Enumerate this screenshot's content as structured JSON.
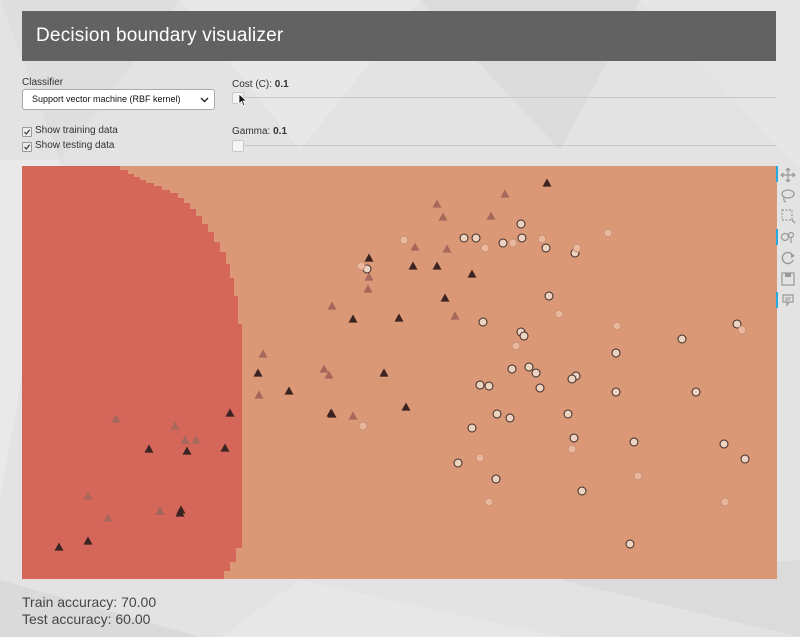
{
  "header": {
    "title": "Decision boundary visualizer"
  },
  "controls": {
    "classifier_label": "Classifier",
    "classifier_value": "Support vector machine (RBF kernel)",
    "show_training_label": "Show training data",
    "show_testing_label": "Show testing data",
    "show_training_checked": true,
    "show_testing_checked": true,
    "cost_label": "Cost (C):",
    "cost_value": "0.1",
    "gamma_label": "Gamma:",
    "gamma_value": "0.1"
  },
  "toolbar": {
    "tools": [
      "pan-icon",
      "lasso-select-icon",
      "box-select-icon",
      "hover-inspect-icon",
      "reset-icon",
      "save-icon",
      "hover-tooltip-icon"
    ]
  },
  "colors": {
    "region_red": "#d4675a",
    "region_orange": "#da9876",
    "triangle_train": "#3a2321",
    "triangle_test": "#a5685b",
    "circle_train_fill": "#ecd2bf",
    "circle_test_fill": "#e9b79b",
    "accent": "#26aae1"
  },
  "accuracy": {
    "train_label": "Train accuracy: 70.00",
    "test_label": "Test accuracy: 60.00"
  },
  "chart_data": {
    "type": "scatter",
    "title": "",
    "xlabel": "",
    "ylabel": "",
    "xlim": [
      0,
      755
    ],
    "ylim": [
      0,
      413
    ],
    "background_regions": [
      "red (left, triangle class)",
      "orange (right, circle class)"
    ],
    "series": [
      {
        "marker": "triangle",
        "split": "train",
        "x": [
          525,
          347,
          391,
          415,
          450,
          423,
          331,
          377,
          236,
          267,
          362,
          310,
          384,
          309,
          208,
          203,
          127,
          165,
          158,
          138,
          66,
          37,
          159
        ],
        "y": [
          17,
          92,
          100,
          100,
          108,
          132,
          153,
          152,
          207,
          225,
          207,
          248,
          241,
          247,
          247,
          282,
          283,
          285,
          347,
          345,
          375,
          381,
          344
        ]
      },
      {
        "marker": "triangle",
        "split": "test",
        "x": [
          483,
          415,
          421,
          469,
          425,
          393,
          347,
          433,
          346,
          310,
          241,
          237,
          302,
          307,
          331,
          94,
          153,
          163,
          174,
          66,
          86,
          138
        ],
        "y": [
          28,
          38,
          51,
          50,
          83,
          81,
          111,
          150,
          123,
          140,
          188,
          229,
          203,
          209,
          250,
          253,
          260,
          274,
          274,
          330,
          352,
          345
        ]
      },
      {
        "marker": "circle",
        "split": "train",
        "x": [
          442,
          454,
          481,
          499,
          500,
          524,
          553,
          345,
          527,
          461,
          499,
          502,
          660,
          715,
          594,
          507,
          514,
          490,
          467,
          554,
          550,
          458,
          518,
          475,
          674,
          450,
          546,
          552,
          488,
          594,
          612,
          702,
          723,
          474,
          436,
          560,
          608
        ],
        "y": [
          72,
          72,
          77,
          58,
          72,
          82,
          87,
          103,
          130,
          156,
          166,
          170,
          173,
          158,
          187,
          201,
          207,
          203,
          220,
          210,
          213,
          219,
          222,
          248,
          226,
          262,
          248,
          272,
          252,
          226,
          276,
          278,
          293,
          313,
          297,
          325,
          378
        ]
      },
      {
        "marker": "circle",
        "split": "test",
        "x": [
          382,
          491,
          520,
          586,
          463,
          555,
          339,
          537,
          494,
          720,
          595,
          550,
          458,
          467,
          616,
          703,
          341
        ],
        "y": [
          74,
          77,
          73,
          67,
          82,
          82,
          100,
          148,
          180,
          164,
          160,
          283,
          292,
          336,
          310,
          336,
          260
        ]
      }
    ]
  }
}
